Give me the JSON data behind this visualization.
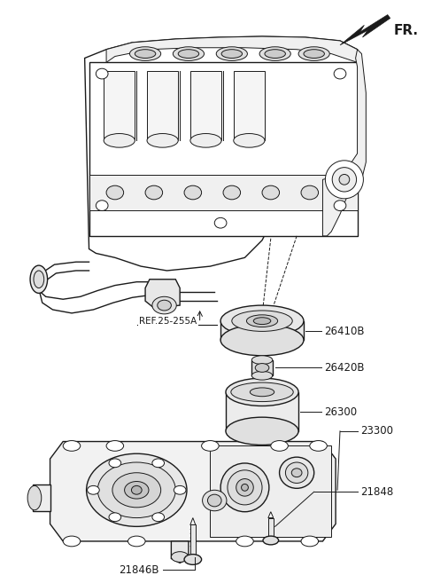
{
  "bg_color": "#ffffff",
  "line_color": "#1a1a1a",
  "label_color": "#1a1a1a",
  "fr_label": "FR.",
  "ref_label": "REF.25-255A",
  "part_labels": [
    "26410B",
    "26420B",
    "26300",
    "23300",
    "21848",
    "21846B"
  ],
  "figsize": [
    4.8,
    6.57
  ],
  "dpi": 100
}
